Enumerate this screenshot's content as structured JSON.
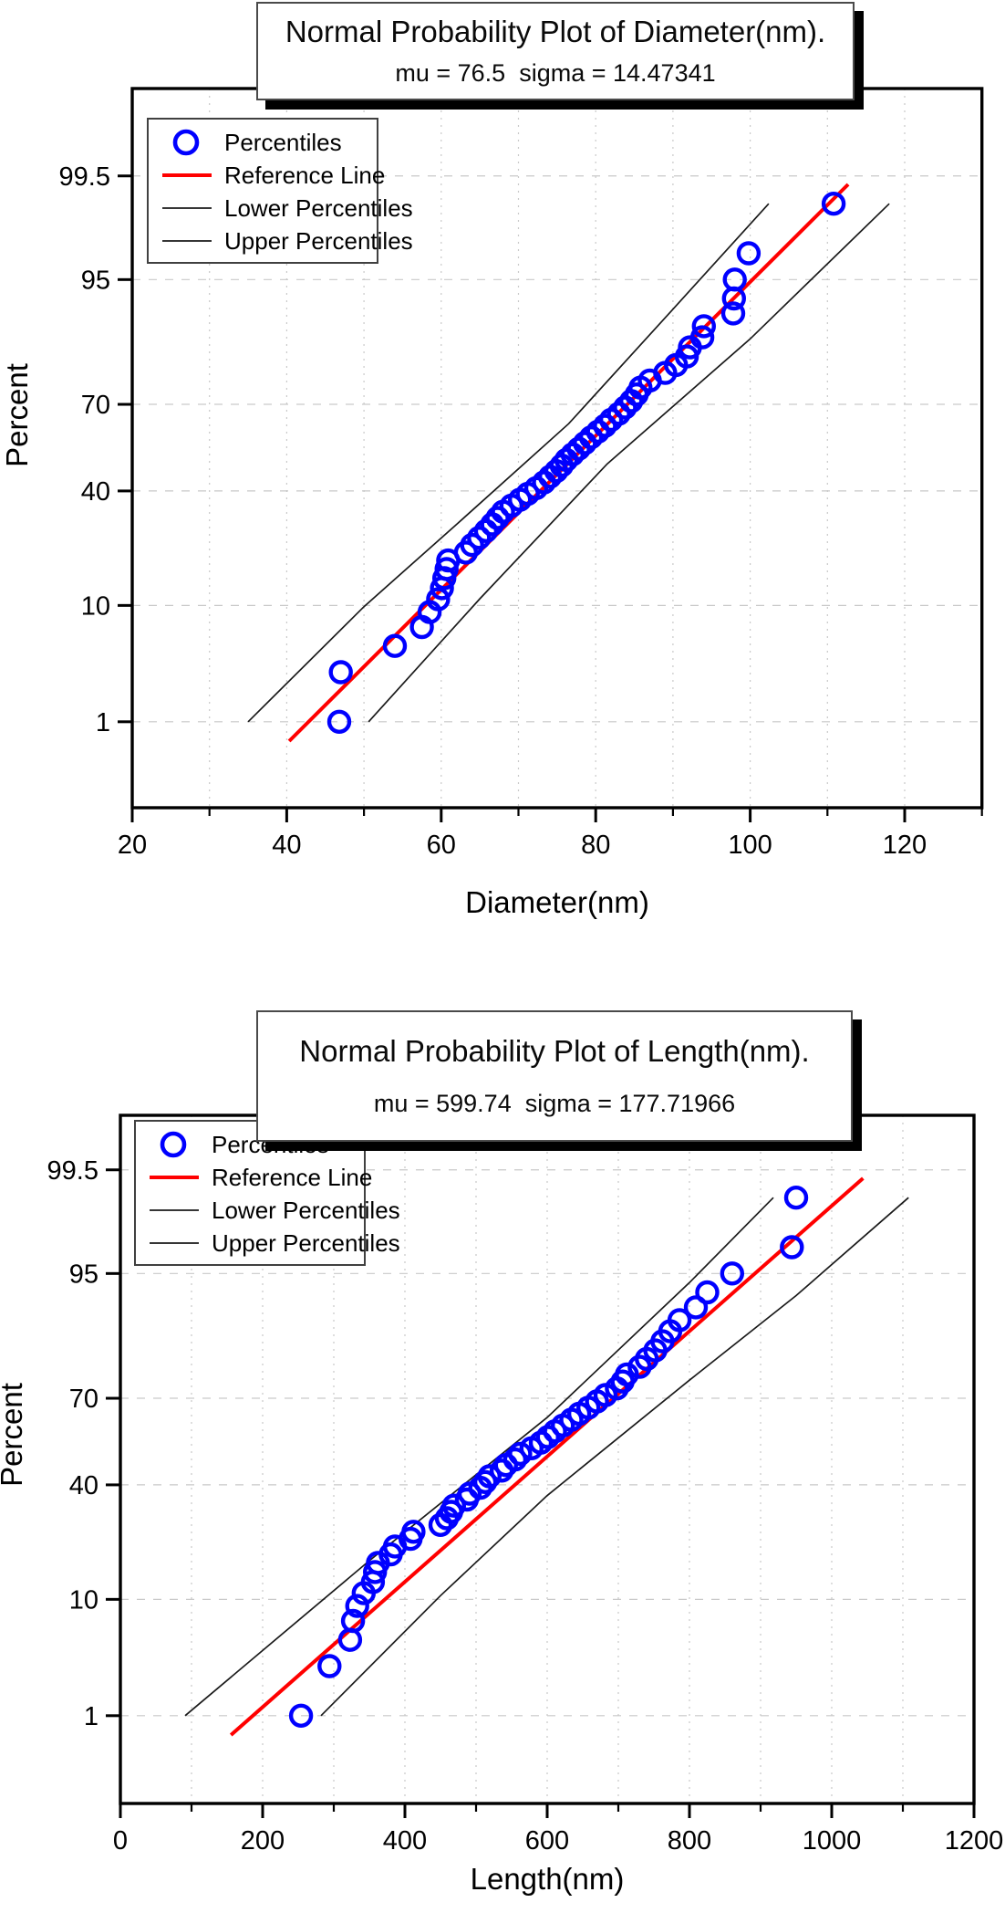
{
  "page": {
    "background": "#ffffff"
  },
  "colors": {
    "points": "#0000ff",
    "reference_line": "#ff0000",
    "percentile_bands": "#1a1a1a",
    "gridline": "#c9c9c9",
    "frame": "#000000"
  },
  "chart_data": [
    {
      "type": "scatter",
      "title": "Normal Probability Plot of Diameter(nm).",
      "subtitle": "mu = 76.5  sigma = 14.47341",
      "mu": 76.5,
      "sigma": 14.47341,
      "xlabel": "Diameter(nm)",
      "ylabel": "Percent",
      "x_range": [
        20,
        130
      ],
      "x_ticks": [
        20,
        40,
        60,
        80,
        100,
        120
      ],
      "x_minor_step": 10,
      "y_scale": "normal-probability",
      "y_ticks_percent": [
        "1",
        "10",
        "40",
        "70",
        "95",
        "99.5"
      ],
      "legend": [
        {
          "label": "Percentiles",
          "symbol": "circle",
          "color": "#0000ff"
        },
        {
          "label": "Reference Line",
          "symbol": "line",
          "color": "#ff0000"
        },
        {
          "label": "Lower Percentiles",
          "symbol": "line",
          "color": "#1a1a1a"
        },
        {
          "label": "Upper Percentiles",
          "symbol": "line",
          "color": "#1a1a1a"
        }
      ],
      "legend_position": "top-left-inside",
      "grid": true,
      "reference_line_z_extent": [
        -2.5,
        2.5
      ],
      "band_upper": [
        [
          35,
          1.0
        ],
        [
          50,
          9.8
        ],
        [
          62,
          29.0
        ],
        [
          76.5,
          63.7
        ],
        [
          90,
          91.6
        ],
        [
          102.4,
          99.0
        ]
      ],
      "band_lower": [
        [
          50.6,
          1.0
        ],
        [
          65,
          11.1
        ],
        [
          81.5,
          49.6
        ],
        [
          100,
          86.7
        ],
        [
          118,
          99.0
        ]
      ],
      "points": [
        [
          46.8,
          1
        ],
        [
          47.0,
          3
        ],
        [
          54.0,
          5
        ],
        [
          57.5,
          7
        ],
        [
          58.5,
          9
        ],
        [
          59.6,
          11
        ],
        [
          60.1,
          13
        ],
        [
          60.4,
          15
        ],
        [
          60.7,
          17
        ],
        [
          60.9,
          19
        ],
        [
          63.2,
          21
        ],
        [
          64.0,
          23
        ],
        [
          64.9,
          25
        ],
        [
          65.8,
          27
        ],
        [
          66.6,
          29
        ],
        [
          67.3,
          31
        ],
        [
          68.0,
          33
        ],
        [
          69.1,
          35
        ],
        [
          70.2,
          37
        ],
        [
          71.2,
          39
        ],
        [
          72.3,
          41
        ],
        [
          73.3,
          43
        ],
        [
          74.1,
          45
        ],
        [
          74.9,
          47
        ],
        [
          75.6,
          49
        ],
        [
          76.2,
          51
        ],
        [
          77.0,
          53
        ],
        [
          77.8,
          55
        ],
        [
          78.6,
          57
        ],
        [
          79.4,
          59
        ],
        [
          80.3,
          61
        ],
        [
          81.2,
          63
        ],
        [
          82.0,
          65
        ],
        [
          83.0,
          67
        ],
        [
          83.8,
          69
        ],
        [
          84.6,
          71
        ],
        [
          85.3,
          73
        ],
        [
          85.8,
          75
        ],
        [
          87.0,
          77
        ],
        [
          89.0,
          79
        ],
        [
          90.4,
          81
        ],
        [
          91.8,
          83
        ],
        [
          92.2,
          85
        ],
        [
          93.8,
          87
        ],
        [
          94.0,
          89
        ],
        [
          97.8,
          91
        ],
        [
          97.9,
          93
        ],
        [
          98.0,
          95
        ],
        [
          99.8,
          97
        ],
        [
          110.8,
          99
        ]
      ]
    },
    {
      "type": "scatter",
      "title": "Normal Probability Plot of Length(nm).",
      "subtitle": "mu = 599.74  sigma = 177.71966",
      "mu": 599.74,
      "sigma": 177.71966,
      "xlabel": "Length(nm)",
      "ylabel": "Percent",
      "x_range": [
        0,
        1200
      ],
      "x_ticks": [
        0,
        200,
        400,
        600,
        800,
        1000,
        1200
      ],
      "x_minor_step": 100,
      "y_scale": "normal-probability",
      "y_ticks_percent": [
        "1",
        "10",
        "40",
        "70",
        "95",
        "99.5"
      ],
      "legend": [
        {
          "label": "Percentiles",
          "symbol": "circle",
          "color": "#0000ff"
        },
        {
          "label": "Reference Line",
          "symbol": "line",
          "color": "#ff0000"
        },
        {
          "label": "Lower Percentiles",
          "symbol": "line",
          "color": "#1a1a1a"
        },
        {
          "label": "Upper Percentiles",
          "symbol": "line",
          "color": "#1a1a1a"
        }
      ],
      "legend_position": "top-left-inside",
      "grid": true,
      "reference_line_z_extent": [
        -2.5,
        2.5
      ],
      "band_upper": [
        [
          91,
          1.0
        ],
        [
          350,
          17.5
        ],
        [
          599.74,
          63.7
        ],
        [
          800,
          94.1
        ],
        [
          918,
          99.0
        ]
      ],
      "band_lower": [
        [
          282,
          1.0
        ],
        [
          450,
          10.6
        ],
        [
          599.74,
          36.3
        ],
        [
          800,
          75.4
        ],
        [
          950,
          92.6
        ],
        [
          1108,
          99.0
        ]
      ],
      "points": [
        [
          254,
          1
        ],
        [
          294,
          3
        ],
        [
          323,
          5
        ],
        [
          327,
          7
        ],
        [
          333,
          9
        ],
        [
          342,
          11
        ],
        [
          355,
          13
        ],
        [
          358,
          15
        ],
        [
          362,
          17
        ],
        [
          380,
          19
        ],
        [
          386,
          21
        ],
        [
          408,
          23
        ],
        [
          412,
          25
        ],
        [
          450,
          27
        ],
        [
          459,
          29
        ],
        [
          465,
          31
        ],
        [
          469,
          33
        ],
        [
          487,
          35
        ],
        [
          491,
          37
        ],
        [
          506,
          39
        ],
        [
          513,
          41
        ],
        [
          519,
          43
        ],
        [
          536,
          45
        ],
        [
          542,
          47
        ],
        [
          555,
          49
        ],
        [
          562,
          51
        ],
        [
          578,
          53
        ],
        [
          591,
          55
        ],
        [
          601,
          57
        ],
        [
          611,
          59
        ],
        [
          622,
          61
        ],
        [
          634,
          63
        ],
        [
          645,
          65
        ],
        [
          658,
          67
        ],
        [
          670,
          69
        ],
        [
          682,
          71
        ],
        [
          698,
          73
        ],
        [
          706,
          75
        ],
        [
          712,
          77
        ],
        [
          730,
          79
        ],
        [
          740,
          81
        ],
        [
          752,
          83
        ],
        [
          762,
          85
        ],
        [
          773,
          87
        ],
        [
          786,
          89
        ],
        [
          809,
          91
        ],
        [
          825,
          93
        ],
        [
          860,
          95
        ],
        [
          944,
          97
        ],
        [
          950,
          99
        ]
      ]
    }
  ]
}
